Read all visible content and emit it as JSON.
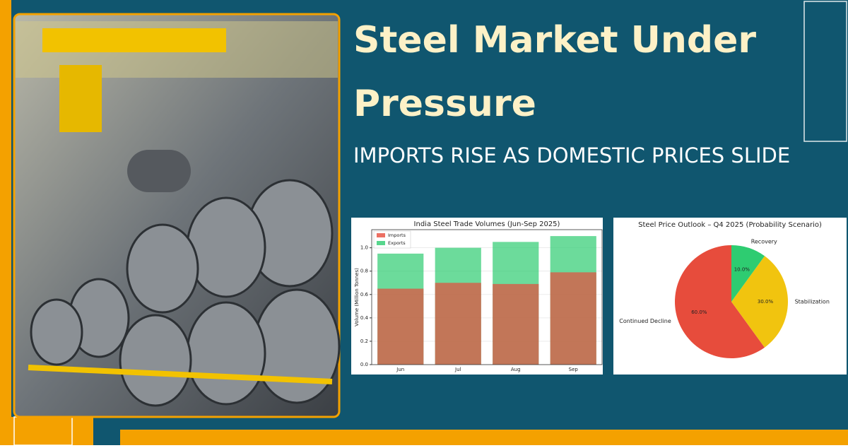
{
  "header": {
    "title": "Steel Market Under Pressure",
    "subtitle": "IMPORTS RISE AS DOMESTIC PRICES SLIDE"
  },
  "chart_data": [
    {
      "type": "bar",
      "title": "India Steel Trade Volumes (Jun-Sep 2025)",
      "y_label": "Volume (Million Tonnes)",
      "categories": [
        "Jun",
        "Jul",
        "Aug",
        "Sep"
      ],
      "series": [
        {
          "name": "Exports",
          "color": "#2ecc71",
          "values": [
            0.95,
            1.0,
            1.05,
            1.1
          ]
        },
        {
          "name": "Imports",
          "color": "#e74c3c",
          "values": [
            0.65,
            0.7,
            0.69,
            0.79
          ]
        }
      ],
      "ylim": [
        0,
        1.155
      ],
      "yticks": [
        {
          "value": 0,
          "label": "0.0"
        },
        {
          "value": 0.2,
          "label": "0.2"
        },
        {
          "value": 0.4,
          "label": "0.4"
        },
        {
          "value": 0.6,
          "label": "0.6"
        },
        {
          "value": 0.8,
          "label": "0.8"
        },
        {
          "value": 1,
          "label": "1.0"
        }
      ],
      "grid": true,
      "legend": "upper left"
    },
    {
      "type": "pie",
      "title": "Steel Price Outlook – Q4 2025 (Probability Scenario)",
      "categories": [
        "Continued Decline",
        "Stabilization",
        "Recovery"
      ],
      "values": [
        60,
        30,
        10
      ],
      "value_labels": [
        "60.0%",
        "30.0%",
        "10.0%"
      ],
      "colors": [
        "#e74c3c",
        "#f1c40f",
        "#2ecc71"
      ]
    }
  ]
}
